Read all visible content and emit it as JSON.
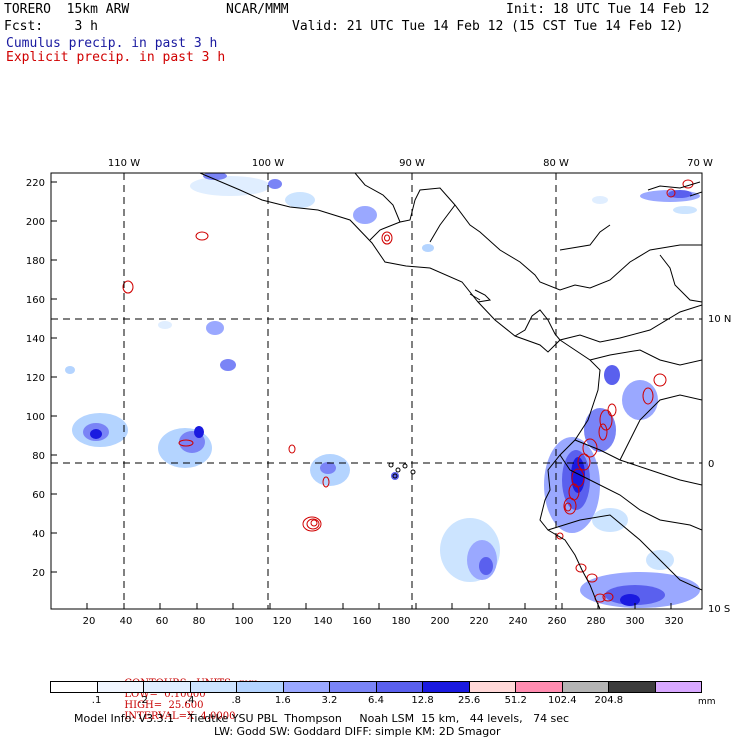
{
  "header": {
    "model": "TORERO  15km ARW",
    "org": "NCAR/MMM",
    "init": "Init: 18 UTC Tue 14 Feb 12",
    "fcst": "Fcst:    3 h",
    "valid": "Valid: 21 UTC Tue 14 Feb 12 (15 CST Tue 14 Feb 12)"
  },
  "legend": {
    "cumulus": "Cumulus precip. in past 3 h",
    "explicit": "Explicit precip. in past 3 h"
  },
  "map": {
    "lon_labels": [
      "110 W",
      "100 W",
      "90 W",
      "80 W",
      "70 W"
    ],
    "lat_labels": [
      "10 N",
      "0",
      "10 S"
    ],
    "x_ticks": [
      "20",
      "40",
      "60",
      "80",
      "100",
      "120",
      "140",
      "160",
      "180",
      "200",
      "220",
      "240",
      "260",
      "280",
      "300",
      "320"
    ],
    "y_ticks": [
      "20",
      "40",
      "60",
      "80",
      "100",
      "120",
      "140",
      "160",
      "180",
      "200",
      "220"
    ]
  },
  "contours": {
    "units": "CONTOURS:  UNITS=mm",
    "low": "LOW=  0.10000",
    "high": "HIGH=  25.600",
    "interval": "INTERVAL=X  4.0000"
  },
  "colorbar": {
    "colors": [
      "#ffffff",
      "#f0f6ff",
      "#e0eeff",
      "#cce4ff",
      "#b4d4ff",
      "#9aa8ff",
      "#7a84f6",
      "#5a60ee",
      "#1a1ae0",
      "#ffd8d8",
      "#ff8cb0",
      "#b4b4b4",
      "#3c3c3c",
      "#d8a8ff"
    ],
    "labels": [
      ".1",
      ".2",
      ".4",
      ".8",
      "1.6",
      "3.2",
      "6.4",
      "12.8",
      "25.6",
      "51.2",
      "102.4",
      "204.8"
    ],
    "unit": "mm"
  },
  "info": {
    "line1": "Model Info: V3.3.1    Tiedtke YSU PBL  Thompson     Noah LSM  15 km,   44 levels,   74 sec",
    "line2": "LW: Godd SW: Goddard DIFF: simple KM: 2D Smagor"
  }
}
